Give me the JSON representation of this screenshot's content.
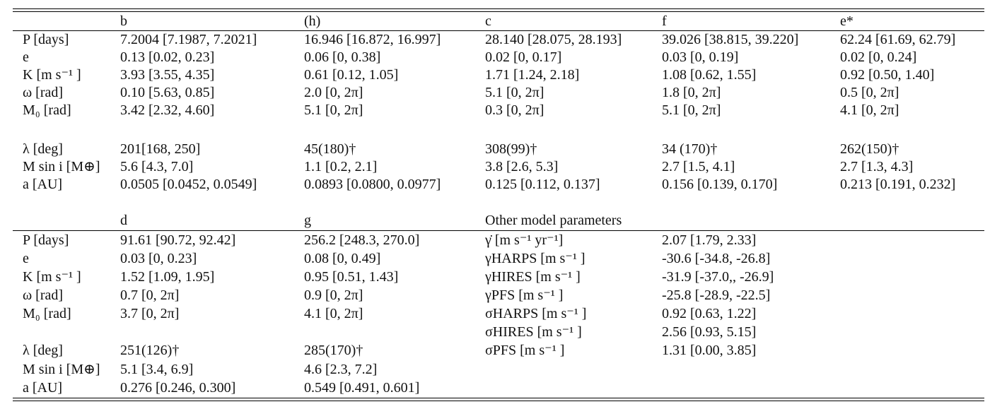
{
  "top": {
    "headers": [
      "",
      "b",
      "(h)",
      "c",
      "f",
      "e*"
    ],
    "rows1": [
      [
        "P [days]",
        "7.2004 [7.1987, 7.2021]",
        "16.946 [16.872, 16.997]",
        "28.140 [28.075, 28.193]",
        "39.026 [38.815, 39.220]",
        "62.24 [61.69, 62.79]"
      ],
      [
        "e",
        "0.13 [0.02, 0.23]",
        "0.06 [0, 0.38]",
        "0.02 [0, 0.17]",
        "0.03 [0, 0.19]",
        "0.02 [0, 0.24]"
      ],
      [
        "K [m s⁻¹ ]",
        "3.93 [3.55, 4.35]",
        "0.61 [0.12, 1.05]",
        "1.71 [1.24, 2.18]",
        "1.08 [0.62, 1.55]",
        "0.92 [0.50, 1.40]"
      ],
      [
        "ω [rad]",
        "0.10 [5.63, 0.85]",
        "2.0 [0, 2π]",
        "5.1 [0, 2π]",
        "1.8 [0, 2π]",
        "0.5 [0, 2π]"
      ],
      [
        "M₀ [rad]",
        "3.42 [2.32, 4.60]",
        "5.1 [0, 2π]",
        "0.3 [0, 2π]",
        "5.1 [0, 2π]",
        "4.1 [0, 2π]"
      ]
    ],
    "rows2": [
      [
        "λ [deg]",
        "201[168, 250]",
        "45(180)†",
        "308(99)†",
        "34 (170)†",
        "262(150)†"
      ],
      [
        "M sin i [M⊕]",
        "5.6 [4.3, 7.0]",
        "1.1 [0.2, 2.1]",
        "3.8 [2.6, 5.3]",
        "2.7 [1.5, 4.1]",
        "2.7 [1.3, 4.3]"
      ],
      [
        "a [AU]",
        "0.0505 [0.0452, 0.0549]",
        "0.0893 [0.0800, 0.0977]",
        "0.125 [0.112, 0.137]",
        "0.156 [0.139, 0.170]",
        "0.213 [0.191, 0.232]"
      ]
    ]
  },
  "bottom": {
    "headers": [
      "",
      "d",
      "g",
      "Other model parameters"
    ],
    "rows1": [
      [
        "P [days]",
        "91.61 [90.72, 92.42]",
        "256.2 [248.3, 270.0]",
        "γ̇ [m s⁻¹ yr⁻¹]",
        "2.07 [1.79, 2.33]"
      ],
      [
        "e",
        "0.03 [0, 0.23]",
        "0.08 [0, 0.49]",
        "γHARPS [m s⁻¹ ]",
        "-30.6 [-34.8, -26.8]"
      ],
      [
        "K [m s⁻¹ ]",
        "1.52 [1.09, 1.95]",
        "0.95 [0.51, 1.43]",
        "γHIRES [m s⁻¹ ]",
        "-31.9 [-37.0,, -26.9]"
      ],
      [
        "ω [rad]",
        "0.7 [0, 2π]",
        "0.9 [0, 2π]",
        "γPFS [m s⁻¹ ]",
        "-25.8 [-28.9, -22.5]"
      ],
      [
        "M₀ [rad]",
        "3.7 [0, 2π]",
        "4.1 [0, 2π]",
        "σHARPS [m s⁻¹ ]",
        "0.92 [0.63, 1.22]"
      ],
      [
        "",
        "",
        "",
        "σHIRES [m s⁻¹ ]",
        "2.56 [0.93, 5.15]"
      ],
      [
        "λ [deg]",
        "251(126)†",
        "285(170)†",
        "σPFS [m s⁻¹ ]",
        "1.31 [0.00, 3.85]"
      ],
      [
        "M sin i [M⊕]",
        "5.1 [3.4, 6.9]",
        "4.6 [2.3, 7.2]",
        "",
        ""
      ],
      [
        "a [AU]",
        "0.276 [0.246, 0.300]",
        "0.549 [0.491, 0.601]",
        "",
        ""
      ]
    ]
  }
}
